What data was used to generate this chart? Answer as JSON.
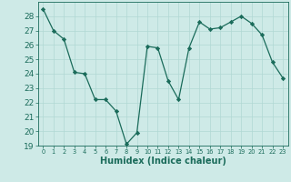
{
  "x": [
    0,
    1,
    2,
    3,
    4,
    5,
    6,
    7,
    8,
    9,
    10,
    11,
    12,
    13,
    14,
    15,
    16,
    17,
    18,
    19,
    20,
    21,
    22,
    23
  ],
  "y": [
    28.5,
    27.0,
    26.4,
    24.1,
    24.0,
    22.2,
    22.2,
    21.4,
    19.1,
    19.9,
    25.9,
    25.8,
    23.5,
    22.2,
    25.8,
    27.6,
    27.1,
    27.2,
    27.6,
    28.0,
    27.5,
    26.7,
    24.8,
    23.7
  ],
  "ylim": [
    19,
    29
  ],
  "yticks": [
    19,
    20,
    21,
    22,
    23,
    24,
    25,
    26,
    27,
    28
  ],
  "xlim": [
    -0.5,
    23.5
  ],
  "xticks": [
    0,
    1,
    2,
    3,
    4,
    5,
    6,
    7,
    8,
    9,
    10,
    11,
    12,
    13,
    14,
    15,
    16,
    17,
    18,
    19,
    20,
    21,
    22,
    23
  ],
  "xlabel": "Humidex (Indice chaleur)",
  "line_color": "#1a6b5a",
  "marker": "D",
  "marker_size": 2.2,
  "bg_color": "#ceeae7",
  "grid_color": "#b0d8d4",
  "axis_color": "#1a6b5a",
  "label_color": "#1a6b5a",
  "tick_fontsize": 6.5,
  "xlabel_fontsize": 7.0
}
